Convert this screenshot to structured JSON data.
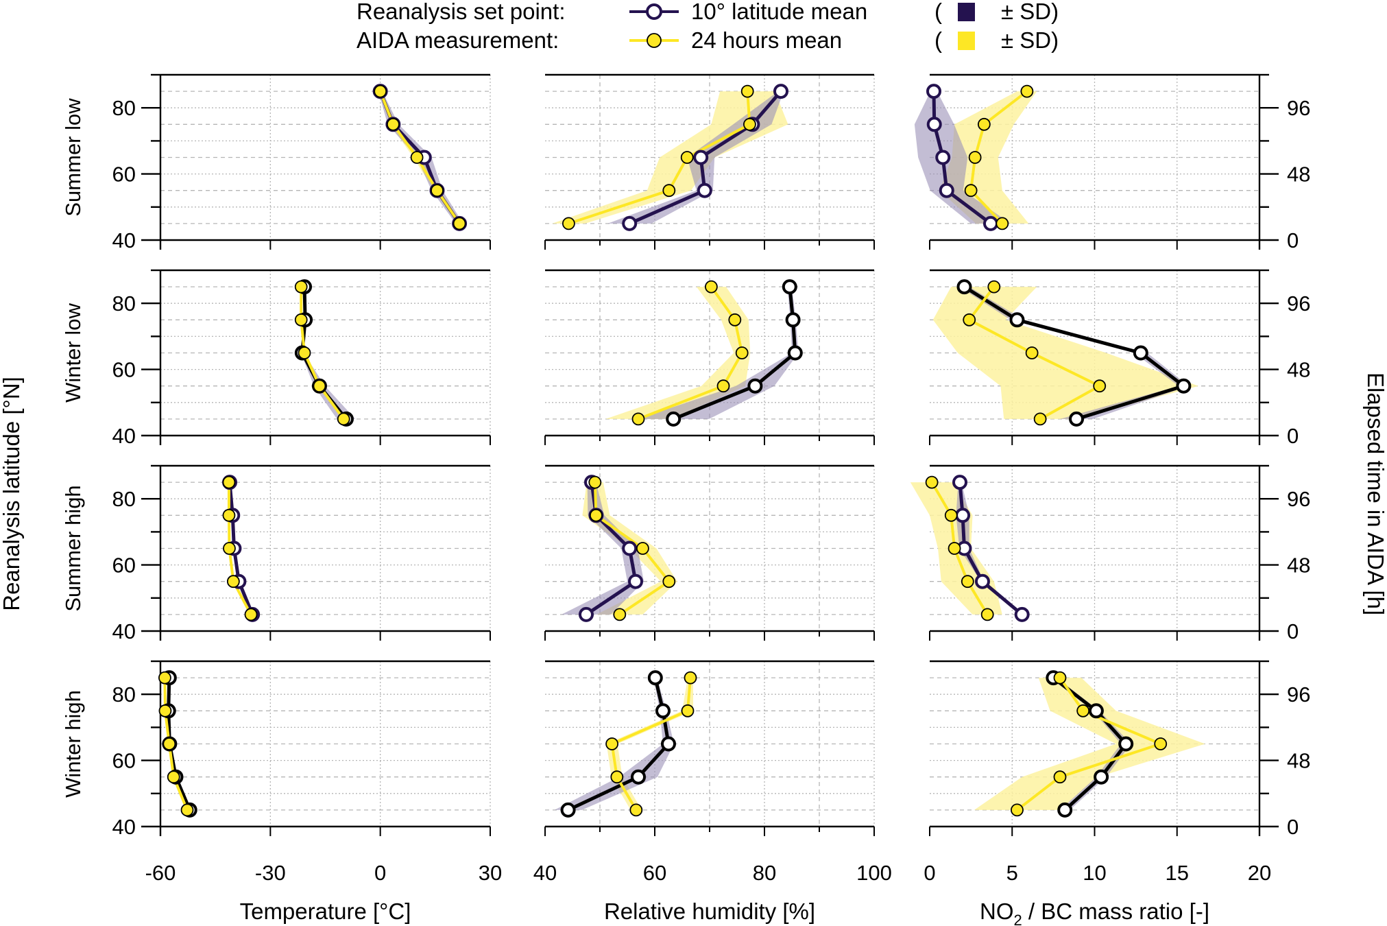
{
  "legend": {
    "row1_label": "Reanalysis set point:",
    "row1_series": "10° latitude mean",
    "row1_sd": "± SD)",
    "row2_label": "AIDA measurement:",
    "row2_series": "24 hours mean",
    "row2_sd": "± SD)",
    "open_paren": "("
  },
  "colors": {
    "reanalysis_summer": "#24124f",
    "reanalysis_winter": "#000000",
    "reanalysis_band": "#9b91b8",
    "aida": "#fde725",
    "aida_band": "#fdf2a0"
  },
  "chart_data": {
    "type": "line",
    "title": "",
    "ylabel": "Reanalysis latitude [°N]",
    "y2label": "Elapsed time in AIDA [h]",
    "ylim": [
      40,
      90
    ],
    "yticks": [
      40,
      60,
      80
    ],
    "y2lim": [
      0,
      120
    ],
    "y2ticks": [
      0,
      48,
      96
    ],
    "latitudes": [
      85,
      75,
      65,
      55,
      45
    ],
    "grid": true,
    "legend_position": "top-center",
    "columns": [
      {
        "key": "temp",
        "xlabel": "Temperature [°C]",
        "xlim": [
          -60,
          30
        ],
        "xticks": [
          -60,
          -30,
          0,
          30
        ]
      },
      {
        "key": "rh",
        "xlabel": "Relative humidity [%]",
        "xlim": [
          40,
          100
        ],
        "xticks": [
          40,
          60,
          80,
          100
        ]
      },
      {
        "key": "no2",
        "xlabel": "NO2 / BC mass ratio [-]",
        "xlabel_main": "NO",
        "xlabel_sub": "2",
        "xlabel_rest": " / BC mass ratio [-]",
        "xlim": [
          0,
          20
        ],
        "xticks": [
          0,
          5,
          10,
          15,
          20
        ]
      }
    ],
    "rows": [
      {
        "label": "Summer low",
        "season": "summer",
        "temp": {
          "reanalysis": [
            0,
            3.5,
            12,
            15.5,
            21.6
          ],
          "reanalysis_sd": [
            0.5,
            1.5,
            2,
            1.5,
            1
          ],
          "aida": [
            0,
            3.5,
            10,
            15.5,
            21.6
          ],
          "aida_sd": [
            0.3,
            0.8,
            1,
            0.8,
            0.6
          ]
        },
        "rh": {
          "reanalysis": [
            83,
            77.8,
            68.4,
            69.1,
            55.4
          ],
          "reanalysis_sd": [
            0.5,
            3.5,
            2.5,
            1.5,
            4
          ],
          "aida": [
            76.9,
            77.3,
            65.9,
            62.6,
            44.3
          ],
          "aida_sd": [
            5,
            7,
            5,
            4,
            3
          ]
        },
        "no2": {
          "reanalysis": [
            0.25,
            0.28,
            0.8,
            1.03,
            3.7
          ],
          "reanalysis_sd": [
            0.2,
            1.2,
            1.5,
            1.0,
            1.2
          ],
          "aida": [
            5.9,
            3.3,
            2.75,
            2.5,
            4.4
          ],
          "aida_sd": [
            0.6,
            1.8,
            1.4,
            1.9,
            1.6
          ]
        }
      },
      {
        "label": "Winter low",
        "season": "winter",
        "temp": {
          "reanalysis": [
            -20.7,
            -20.5,
            -21.3,
            -16.6,
            -9.3
          ],
          "reanalysis_sd": [
            0.3,
            0.3,
            0.4,
            1.5,
            2.5
          ],
          "aida": [
            -21.6,
            -21.6,
            -20.7,
            -16.6,
            -10
          ],
          "aida_sd": [
            0.3,
            0.3,
            0.4,
            0.5,
            0.5
          ]
        },
        "rh": {
          "reanalysis": [
            84.6,
            85.2,
            85.6,
            78.3,
            63.4
          ],
          "reanalysis_sd": [
            0.4,
            0.5,
            0.6,
            3.5,
            6.5
          ],
          "aida": [
            70.3,
            74.6,
            75.9,
            72.5,
            57
          ],
          "aida_sd": [
            2.7,
            2.5,
            1.5,
            4,
            6
          ]
        },
        "no2": {
          "reanalysis": [
            2.1,
            5.3,
            12.8,
            15.4,
            8.9
          ],
          "reanalysis_sd": [
            0.3,
            0.4,
            0.4,
            0.3,
            1.0
          ],
          "aida": [
            3.9,
            2.4,
            6.2,
            10.3,
            6.7
          ],
          "aida_sd": [
            2.6,
            2.2,
            4.5,
            6.0,
            2.2
          ]
        }
      },
      {
        "label": "Summer high",
        "season": "summer",
        "temp": {
          "reanalysis": [
            -41.1,
            -40.3,
            -39.9,
            -38.6,
            -34.9
          ],
          "reanalysis_sd": [
            0.3,
            0.3,
            0.4,
            0.5,
            0.6
          ],
          "aida": [
            -41.3,
            -41.3,
            -41.2,
            -40.1,
            -35.3
          ],
          "aida_sd": [
            0.3,
            0.3,
            0.3,
            0.3,
            0.4
          ]
        },
        "rh": {
          "reanalysis": [
            48.5,
            49.3,
            55.4,
            56.5,
            47.5
          ],
          "reanalysis_sd": [
            0.8,
            1.5,
            1.5,
            1.5,
            4.5
          ],
          "aida": [
            49.1,
            49.3,
            57.8,
            62.6,
            53.6
          ],
          "aida_sd": [
            1.5,
            2.5,
            2.5,
            1.5,
            4.2
          ]
        },
        "no2": {
          "reanalysis": [
            1.83,
            2.0,
            2.1,
            3.2,
            5.6
          ],
          "reanalysis_sd": [
            0.1,
            0.4,
            0.3,
            0.1,
            0.1
          ],
          "aida": [
            0.13,
            1.3,
            1.5,
            2.3,
            3.5
          ],
          "aida_sd": [
            1.3,
            1.3,
            1.0,
            1.6,
            0.9
          ]
        }
      },
      {
        "label": "Winter high",
        "season": "winter",
        "temp": {
          "reanalysis": [
            -57.6,
            -57.8,
            -57.5,
            -55.8,
            -52
          ],
          "reanalysis_sd": [
            0.3,
            0.3,
            0.3,
            0.4,
            0.6
          ],
          "aida": [
            -58.8,
            -58.7,
            -57.6,
            -56.4,
            -52.7
          ],
          "aida_sd": [
            0.2,
            0.2,
            0.2,
            0.3,
            0.3
          ]
        },
        "rh": {
          "reanalysis": [
            60.1,
            61.5,
            62.5,
            57,
            44.2
          ],
          "reanalysis_sd": [
            0.3,
            0.6,
            1,
            3.5,
            2.5
          ],
          "aida": [
            66.5,
            66,
            52.2,
            53.1,
            56.6
          ],
          "aida_sd": [
            0.5,
            1,
            1,
            1,
            1
          ]
        },
        "no2": {
          "reanalysis": [
            7.5,
            10.1,
            11.9,
            10.4,
            8.2
          ],
          "reanalysis_sd": [
            0.2,
            0.2,
            0.3,
            0.3,
            0.3
          ],
          "aida": [
            7.9,
            9.3,
            14,
            7.9,
            5.3
          ],
          "aida_sd": [
            1.3,
            2.0,
            2.7,
            2.3,
            2.6
          ]
        }
      }
    ]
  }
}
